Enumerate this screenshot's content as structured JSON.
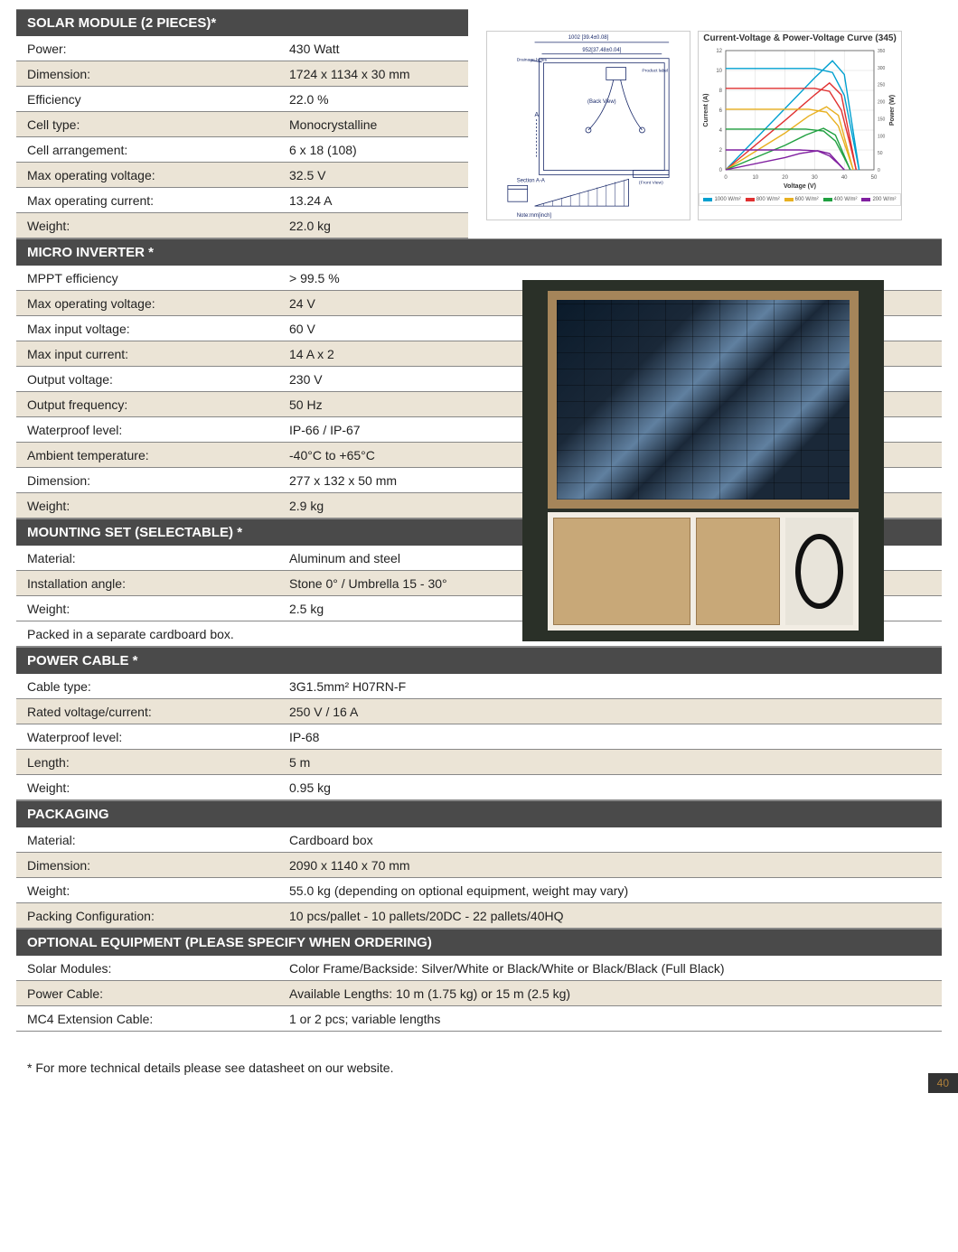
{
  "colors": {
    "header_bg": "#4a4a4a",
    "header_fg": "#ffffff",
    "alt_row_bg": "#ebe4d6",
    "border": "#888888",
    "page_num_bg": "#333333",
    "page_num_fg": "#b0803a"
  },
  "sections": [
    {
      "title": "SOLAR MODULE (2 PIECES)*",
      "rows": [
        {
          "label": "Power:",
          "value": "430 Watt",
          "alt": false
        },
        {
          "label": "Dimension:",
          "value": "1724 x 1134 x 30 mm",
          "alt": true
        },
        {
          "label": "Efficiency",
          "value": "22.0 %",
          "alt": false
        },
        {
          "label": "Cell type:",
          "value": "Monocrystalline",
          "alt": true
        },
        {
          "label": "Cell arrangement:",
          "value": "6 x 18 (108)",
          "alt": false
        },
        {
          "label": "Max operating voltage:",
          "value": "32.5 V",
          "alt": true
        },
        {
          "label": "Max operating current:",
          "value": "13.24 A",
          "alt": false
        },
        {
          "label": "Weight:",
          "value": "22.0 kg",
          "alt": true
        }
      ]
    },
    {
      "title": "MICRO INVERTER *",
      "rows": [
        {
          "label": "MPPT efficiency",
          "value": "> 99.5 %",
          "alt": false
        },
        {
          "label": "Max operating voltage:",
          "value": "24 V",
          "alt": true
        },
        {
          "label": "Max input voltage:",
          "value": "60 V",
          "alt": false
        },
        {
          "label": "Max input current:",
          "value": "14 A x 2",
          "alt": true
        },
        {
          "label": "Output voltage:",
          "value": "230 V",
          "alt": false
        },
        {
          "label": "Output frequency:",
          "value": "50 Hz",
          "alt": true
        },
        {
          "label": "Waterproof level:",
          "value": "IP-66 / IP-67",
          "alt": false
        },
        {
          "label": "Ambient temperature:",
          "value": "-40°C to +65°C",
          "alt": true
        },
        {
          "label": "Dimension:",
          "value": "277 x 132 x 50 mm",
          "alt": false
        },
        {
          "label": "Weight:",
          "value": "2.9 kg",
          "alt": true
        }
      ]
    },
    {
      "title": "MOUNTING SET (SELECTABLE) *",
      "rows": [
        {
          "label": "Material:",
          "value": "Aluminum and steel",
          "alt": false
        },
        {
          "label": "Installation angle:",
          "value": "Stone 0° / Umbrella 15 - 30°",
          "alt": true
        },
        {
          "label": "Weight:",
          "value": "2.5 kg",
          "alt": false
        },
        {
          "label": "Packed in a separate cardboard box.",
          "value": "",
          "alt": false,
          "full": true
        }
      ]
    },
    {
      "title": "POWER CABLE *",
      "rows": [
        {
          "label": "Cable type:",
          "value": "3G1.5mm² H07RN-F",
          "alt": false
        },
        {
          "label": "Rated voltage/current:",
          "value": "250 V / 16 A",
          "alt": true
        },
        {
          "label": "Waterproof level:",
          "value": "IP-68",
          "alt": false
        },
        {
          "label": "Length:",
          "value": "5 m",
          "alt": true
        },
        {
          "label": "Weight:",
          "value": "0.95 kg",
          "alt": false
        }
      ]
    },
    {
      "title": "PACKAGING",
      "rows": [
        {
          "label": "Material:",
          "value": "Cardboard box",
          "alt": false
        },
        {
          "label": "Dimension:",
          "value": "2090 x 1140 x 70 mm",
          "alt": true
        },
        {
          "label": "Weight:",
          "value": "55.0 kg (depending on optional equipment, weight may vary)",
          "alt": false
        },
        {
          "label": "Packing Configuration:",
          "value": "10 pcs/pallet - 10 pallets/20DC - 22 pallets/40HQ",
          "alt": true
        }
      ]
    },
    {
      "title": "OPTIONAL EQUIPMENT (PLEASE SPECIFY WHEN ORDERING)",
      "rows": [
        {
          "label": "Solar Modules:",
          "value": "Color Frame/Backside: Silver/White or Black/White or Black/Black (Full Black)",
          "alt": false
        },
        {
          "label": "Power Cable:",
          "value": "Available Lengths: 10 m (1.75 kg) or 15 m (2.5 kg)",
          "alt": true
        },
        {
          "label": "MC4 Extension Cable:",
          "value": "1 or 2 pcs; variable lengths",
          "alt": false
        }
      ]
    }
  ],
  "diagram": {
    "top_dim": "1002 [39.4±0.08]",
    "inner_dim": "952[37.48±0.04]",
    "back_view": "(Back View)",
    "front_view": "(Front View)",
    "section": "Section A-A",
    "note": "Note:mm[inch]",
    "drainage": "Drainage holes",
    "product": "Product label",
    "line_color": "#1a2a6a"
  },
  "chart": {
    "title": "Current-Voltage & Power-Voltage Curve (345)",
    "xlabel": "Voltage (V)",
    "ylabel_left": "Current (A)",
    "ylabel_right": "Power (W)",
    "xlim": [
      0,
      50
    ],
    "ylim": [
      0,
      12
    ],
    "grid_color": "#d8d8d8",
    "axis_color": "#555555",
    "label_fontsize": 8,
    "series": [
      {
        "name": "1000 W/m²",
        "color": "#00a0d0",
        "iv": [
          [
            0,
            10.2
          ],
          [
            30,
            10.2
          ],
          [
            36,
            9.8
          ],
          [
            40,
            7.5
          ],
          [
            43,
            3
          ],
          [
            45,
            0
          ]
        ],
        "pv": [
          [
            0,
            0
          ],
          [
            20,
            180
          ],
          [
            30,
            270
          ],
          [
            36,
            320
          ],
          [
            40,
            280
          ],
          [
            45,
            0
          ]
        ]
      },
      {
        "name": "800 W/m²",
        "color": "#e03030",
        "iv": [
          [
            0,
            8.2
          ],
          [
            30,
            8.2
          ],
          [
            35,
            7.9
          ],
          [
            39,
            6.0
          ],
          [
            42,
            2.5
          ],
          [
            44,
            0
          ]
        ],
        "pv": [
          [
            0,
            0
          ],
          [
            20,
            145
          ],
          [
            30,
            220
          ],
          [
            35,
            255
          ],
          [
            39,
            220
          ],
          [
            44,
            0
          ]
        ]
      },
      {
        "name": "600 W/m²",
        "color": "#e8b020",
        "iv": [
          [
            0,
            6.1
          ],
          [
            28,
            6.1
          ],
          [
            34,
            5.8
          ],
          [
            38,
            4.4
          ],
          [
            41,
            1.8
          ],
          [
            43,
            0
          ]
        ],
        "pv": [
          [
            0,
            0
          ],
          [
            20,
            108
          ],
          [
            28,
            158
          ],
          [
            34,
            185
          ],
          [
            38,
            160
          ],
          [
            43,
            0
          ]
        ]
      },
      {
        "name": "400 W/m²",
        "color": "#20a040",
        "iv": [
          [
            0,
            4.1
          ],
          [
            27,
            4.1
          ],
          [
            33,
            3.9
          ],
          [
            37,
            2.9
          ],
          [
            40,
            1.2
          ],
          [
            42,
            0
          ]
        ],
        "pv": [
          [
            0,
            0
          ],
          [
            20,
            72
          ],
          [
            27,
            102
          ],
          [
            33,
            122
          ],
          [
            37,
            102
          ],
          [
            42,
            0
          ]
        ]
      },
      {
        "name": "200 W/m²",
        "color": "#8020a0",
        "iv": [
          [
            0,
            2.0
          ],
          [
            25,
            2.0
          ],
          [
            31,
            1.9
          ],
          [
            35,
            1.4
          ],
          [
            38,
            0.6
          ],
          [
            40,
            0
          ]
        ],
        "pv": [
          [
            0,
            0
          ],
          [
            20,
            36
          ],
          [
            25,
            48
          ],
          [
            31,
            56
          ],
          [
            35,
            48
          ],
          [
            40,
            0
          ]
        ]
      }
    ],
    "power_max": 350
  },
  "footnote": "* For more technical details please see datasheet on our website.",
  "page_number": "40"
}
